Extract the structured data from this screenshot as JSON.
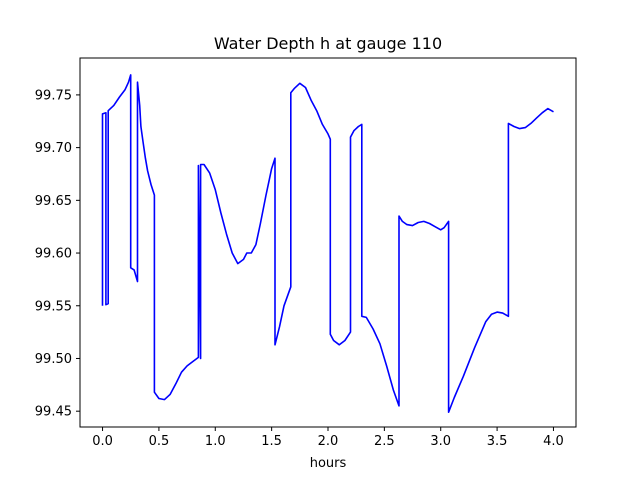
{
  "chart_data": {
    "type": "line",
    "title": "Water Depth h at gauge 110",
    "xlabel": "hours",
    "ylabel": "",
    "xlim": [
      -0.2,
      4.2
    ],
    "ylim": [
      99.435,
      99.785
    ],
    "xticks": [
      0.0,
      0.5,
      1.0,
      1.5,
      2.0,
      2.5,
      3.0,
      3.5,
      4.0
    ],
    "xtick_labels": [
      "0.0",
      "0.5",
      "1.0",
      "1.5",
      "2.0",
      "2.5",
      "3.0",
      "3.5",
      "4.0"
    ],
    "yticks": [
      99.45,
      99.5,
      99.55,
      99.6,
      99.65,
      99.7,
      99.75
    ],
    "ytick_labels": [
      "99.45",
      "99.50",
      "99.55",
      "99.60",
      "99.65",
      "99.70",
      "99.75"
    ],
    "grid": false,
    "series": [
      {
        "color": "#0000ff",
        "points": [
          [
            0.0,
            99.55
          ],
          [
            0.0,
            99.732
          ],
          [
            0.03,
            99.733
          ],
          [
            0.03,
            99.551
          ],
          [
            0.05,
            99.552
          ],
          [
            0.05,
            99.735
          ],
          [
            0.1,
            99.74
          ],
          [
            0.15,
            99.748
          ],
          [
            0.2,
            99.755
          ],
          [
            0.23,
            99.762
          ],
          [
            0.25,
            99.769
          ],
          [
            0.25,
            99.586
          ],
          [
            0.28,
            99.584
          ],
          [
            0.31,
            99.573
          ],
          [
            0.31,
            99.762
          ],
          [
            0.33,
            99.74
          ],
          [
            0.34,
            99.72
          ],
          [
            0.36,
            99.705
          ],
          [
            0.38,
            99.69
          ],
          [
            0.4,
            99.678
          ],
          [
            0.43,
            99.665
          ],
          [
            0.46,
            99.655
          ],
          [
            0.46,
            99.468
          ],
          [
            0.5,
            99.462
          ],
          [
            0.55,
            99.461
          ],
          [
            0.6,
            99.466
          ],
          [
            0.65,
            99.476
          ],
          [
            0.7,
            99.487
          ],
          [
            0.75,
            99.493
          ],
          [
            0.8,
            99.497
          ],
          [
            0.85,
            99.501
          ],
          [
            0.85,
            99.683
          ],
          [
            0.87,
            99.5
          ],
          [
            0.87,
            99.684
          ],
          [
            0.9,
            99.684
          ],
          [
            0.95,
            99.676
          ],
          [
            1.0,
            99.66
          ],
          [
            1.05,
            99.638
          ],
          [
            1.1,
            99.618
          ],
          [
            1.15,
            99.6
          ],
          [
            1.2,
            99.59
          ],
          [
            1.25,
            99.594
          ],
          [
            1.28,
            99.6
          ],
          [
            1.32,
            99.6
          ],
          [
            1.36,
            99.608
          ],
          [
            1.4,
            99.628
          ],
          [
            1.45,
            99.655
          ],
          [
            1.48,
            99.67
          ],
          [
            1.5,
            99.68
          ],
          [
            1.53,
            99.69
          ],
          [
            1.53,
            99.513
          ],
          [
            1.57,
            99.53
          ],
          [
            1.61,
            99.55
          ],
          [
            1.67,
            99.568
          ],
          [
            1.67,
            99.752
          ],
          [
            1.7,
            99.756
          ],
          [
            1.75,
            99.761
          ],
          [
            1.8,
            99.757
          ],
          [
            1.85,
            99.745
          ],
          [
            1.9,
            99.735
          ],
          [
            1.95,
            99.722
          ],
          [
            2.0,
            99.713
          ],
          [
            2.02,
            99.708
          ],
          [
            2.02,
            99.523
          ],
          [
            2.05,
            99.517
          ],
          [
            2.1,
            99.513
          ],
          [
            2.15,
            99.517
          ],
          [
            2.2,
            99.525
          ],
          [
            2.2,
            99.71
          ],
          [
            2.23,
            99.716
          ],
          [
            2.27,
            99.72
          ],
          [
            2.3,
            99.722
          ],
          [
            2.3,
            99.54
          ],
          [
            2.34,
            99.539
          ],
          [
            2.4,
            99.528
          ],
          [
            2.46,
            99.514
          ],
          [
            2.52,
            99.493
          ],
          [
            2.58,
            99.47
          ],
          [
            2.63,
            99.455
          ],
          [
            2.63,
            99.635
          ],
          [
            2.66,
            99.63
          ],
          [
            2.7,
            99.627
          ],
          [
            2.75,
            99.626
          ],
          [
            2.8,
            99.629
          ],
          [
            2.85,
            99.63
          ],
          [
            2.9,
            99.628
          ],
          [
            2.95,
            99.625
          ],
          [
            3.0,
            99.622
          ],
          [
            3.03,
            99.624
          ],
          [
            3.07,
            99.63
          ],
          [
            3.07,
            99.449
          ],
          [
            3.12,
            99.463
          ],
          [
            3.2,
            99.483
          ],
          [
            3.3,
            99.51
          ],
          [
            3.4,
            99.535
          ],
          [
            3.45,
            99.542
          ],
          [
            3.5,
            99.544
          ],
          [
            3.55,
            99.543
          ],
          [
            3.6,
            99.54
          ],
          [
            3.6,
            99.723
          ],
          [
            3.65,
            99.72
          ],
          [
            3.7,
            99.718
          ],
          [
            3.75,
            99.719
          ],
          [
            3.8,
            99.723
          ],
          [
            3.85,
            99.728
          ],
          [
            3.9,
            99.733
          ],
          [
            3.95,
            99.737
          ],
          [
            4.0,
            99.734
          ]
        ]
      }
    ]
  }
}
